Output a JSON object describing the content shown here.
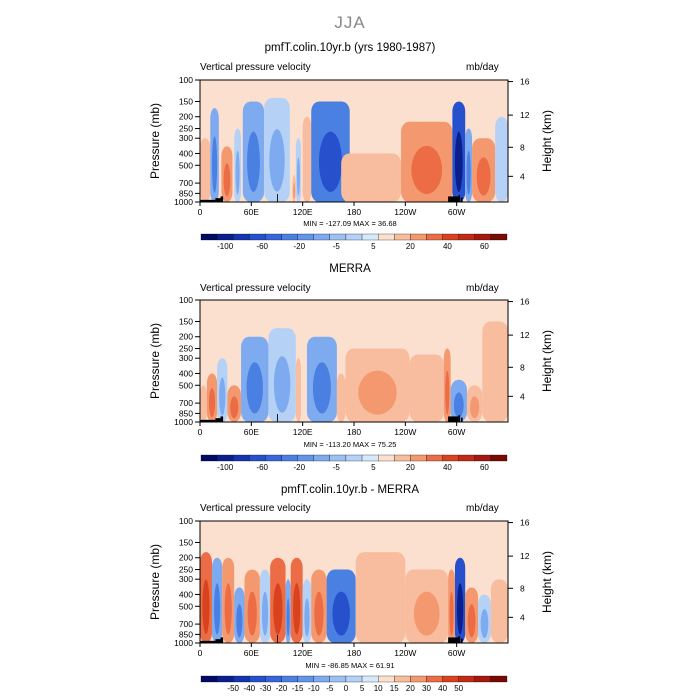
{
  "page_title": "JJA",
  "chart_data": [
    {
      "type": "heatmap",
      "title": "pmfT.colin.10yr.b (yrs 1980-1987)",
      "left_label": "Vertical pressure velocity",
      "right_label": "mb/day",
      "ylabel": "Pressure (mb)",
      "y2label": "Height (km)",
      "xticks": [
        "0",
        "60E",
        "120E",
        "180",
        "120W",
        "60W"
      ],
      "yticks": [
        "100",
        "150",
        "200",
        "250",
        "300",
        "400",
        "500",
        "700",
        "850",
        "1000"
      ],
      "y2ticks": [
        "16",
        "12",
        "8",
        "4"
      ],
      "min_max": "MIN = -127.09   MAX =  36.68",
      "colorbar_labels": [
        "-100",
        "-60",
        "-20",
        "-5",
        "5",
        "20",
        "40",
        "60"
      ],
      "grid": false,
      "features": [
        {
          "lon": 0,
          "lon2": 12,
          "p_top": 300,
          "sign": "+",
          "level": 1
        },
        {
          "lon": 12,
          "lon2": 22,
          "p_top": 170,
          "sign": "-",
          "level": 3
        },
        {
          "lon": 25,
          "lon2": 38,
          "p_top": 350,
          "sign": "+",
          "level": 3
        },
        {
          "lon": 40,
          "lon2": 48,
          "p_top": 250,
          "sign": "-",
          "level": 2
        },
        {
          "lon": 50,
          "lon2": 75,
          "p_top": 150,
          "sign": "-",
          "level": 3
        },
        {
          "lon": 75,
          "lon2": 105,
          "p_top": 140,
          "sign": "-",
          "level": 2
        },
        {
          "lon": 108,
          "lon2": 112,
          "p_top": 600,
          "sign": "+",
          "level": 2
        },
        {
          "lon": 112,
          "lon2": 118,
          "p_top": 300,
          "sign": "-",
          "level": 2
        },
        {
          "lon": 120,
          "lon2": 130,
          "p_top": 200,
          "sign": "+",
          "level": 1
        },
        {
          "lon": 130,
          "lon2": 175,
          "p_top": 150,
          "sign": "-",
          "level": 4
        },
        {
          "lon": 165,
          "lon2": 235,
          "p_top": 400,
          "sign": "+",
          "level": 1
        },
        {
          "lon": 235,
          "lon2": 295,
          "p_top": 220,
          "sign": "+",
          "level": 3
        },
        {
          "lon": 295,
          "lon2": 310,
          "p_top": 150,
          "sign": "-",
          "level": 5
        },
        {
          "lon": 310,
          "lon2": 318,
          "p_top": 250,
          "sign": "-",
          "level": 3
        },
        {
          "lon": 318,
          "lon2": 345,
          "p_top": 300,
          "sign": "+",
          "level": 3
        },
        {
          "lon": 345,
          "lon2": 360,
          "p_top": 200,
          "sign": "-",
          "level": 1
        }
      ]
    },
    {
      "type": "heatmap",
      "title": "MERRA",
      "left_label": "Vertical pressure velocity",
      "right_label": "mb/day",
      "ylabel": "Pressure (mb)",
      "y2label": "Height (km)",
      "xticks": [
        "0",
        "60E",
        "120E",
        "180",
        "120W",
        "60W"
      ],
      "yticks": [
        "100",
        "150",
        "200",
        "250",
        "300",
        "400",
        "500",
        "700",
        "850",
        "1000"
      ],
      "y2ticks": [
        "16",
        "12",
        "8",
        "4"
      ],
      "min_max": "MIN = -113.20   MAX =  75.25",
      "colorbar_labels": [
        "-100",
        "-60",
        "-20",
        "-5",
        "5",
        "20",
        "40",
        "60"
      ],
      "grid": false,
      "features": [
        {
          "lon": 0,
          "lon2": 8,
          "p_top": 500,
          "sign": "+",
          "level": 1
        },
        {
          "lon": 8,
          "lon2": 20,
          "p_top": 400,
          "sign": "+",
          "level": 3
        },
        {
          "lon": 20,
          "lon2": 32,
          "p_top": 300,
          "sign": "-",
          "level": 2
        },
        {
          "lon": 32,
          "lon2": 48,
          "p_top": 500,
          "sign": "+",
          "level": 3
        },
        {
          "lon": 48,
          "lon2": 80,
          "p_top": 200,
          "sign": "-",
          "level": 3
        },
        {
          "lon": 80,
          "lon2": 112,
          "p_top": 170,
          "sign": "-",
          "level": 2
        },
        {
          "lon": 112,
          "lon2": 118,
          "p_top": 300,
          "sign": "+",
          "level": 1
        },
        {
          "lon": 125,
          "lon2": 160,
          "p_top": 200,
          "sign": "-",
          "level": 3
        },
        {
          "lon": 160,
          "lon2": 170,
          "p_top": 400,
          "sign": "+",
          "level": 1
        },
        {
          "lon": 170,
          "lon2": 245,
          "p_top": 250,
          "sign": "+",
          "level": 2
        },
        {
          "lon": 245,
          "lon2": 285,
          "p_top": 280,
          "sign": "+",
          "level": 1
        },
        {
          "lon": 285,
          "lon2": 293,
          "p_top": 250,
          "sign": "+",
          "level": 3
        },
        {
          "lon": 293,
          "lon2": 312,
          "p_top": 450,
          "sign": "-",
          "level": 3
        },
        {
          "lon": 312,
          "lon2": 330,
          "p_top": 500,
          "sign": "+",
          "level": 2
        },
        {
          "lon": 330,
          "lon2": 360,
          "p_top": 150,
          "sign": "+",
          "level": 1
        }
      ]
    },
    {
      "type": "heatmap",
      "title": "pmfT.colin.10yr.b - MERRA",
      "left_label": "Vertical pressure velocity",
      "right_label": "mb/day",
      "ylabel": "Pressure (mb)",
      "y2label": "Height (km)",
      "xticks": [
        "0",
        "60E",
        "120E",
        "180",
        "120W",
        "60W"
      ],
      "yticks": [
        "100",
        "150",
        "200",
        "250",
        "300",
        "400",
        "500",
        "700",
        "850",
        "1000"
      ],
      "y2ticks": [
        "16",
        "12",
        "8",
        "4"
      ],
      "min_max": "MIN = -86.85   MAX =  61.91",
      "colorbar_labels": [
        "-50",
        "-40",
        "-30",
        "-20",
        "-15",
        "-10",
        "-5",
        "0",
        "5",
        "10",
        "15",
        "20",
        "30",
        "40",
        "50"
      ],
      "grid": false,
      "features": [
        {
          "lon": 0,
          "lon2": 14,
          "p_top": 180,
          "sign": "+",
          "level": 4
        },
        {
          "lon": 14,
          "lon2": 26,
          "p_top": 200,
          "sign": "-",
          "level": 3
        },
        {
          "lon": 26,
          "lon2": 40,
          "p_top": 200,
          "sign": "+",
          "level": 3
        },
        {
          "lon": 40,
          "lon2": 52,
          "p_top": 350,
          "sign": "-",
          "level": 3
        },
        {
          "lon": 52,
          "lon2": 70,
          "p_top": 250,
          "sign": "+",
          "level": 3
        },
        {
          "lon": 70,
          "lon2": 82,
          "p_top": 250,
          "sign": "-",
          "level": 2
        },
        {
          "lon": 82,
          "lon2": 100,
          "p_top": 200,
          "sign": "+",
          "level": 4
        },
        {
          "lon": 100,
          "lon2": 106,
          "p_top": 300,
          "sign": "-",
          "level": 3
        },
        {
          "lon": 106,
          "lon2": 120,
          "p_top": 200,
          "sign": "+",
          "level": 4
        },
        {
          "lon": 120,
          "lon2": 130,
          "p_top": 300,
          "sign": "-",
          "level": 2
        },
        {
          "lon": 130,
          "lon2": 148,
          "p_top": 250,
          "sign": "+",
          "level": 3
        },
        {
          "lon": 148,
          "lon2": 182,
          "p_top": 250,
          "sign": "-",
          "level": 4
        },
        {
          "lon": 182,
          "lon2": 240,
          "p_top": 180,
          "sign": "+",
          "level": 1
        },
        {
          "lon": 240,
          "lon2": 290,
          "p_top": 250,
          "sign": "+",
          "level": 2
        },
        {
          "lon": 290,
          "lon2": 298,
          "p_top": 250,
          "sign": "+",
          "level": 3
        },
        {
          "lon": 298,
          "lon2": 310,
          "p_top": 200,
          "sign": "-",
          "level": 5
        },
        {
          "lon": 310,
          "lon2": 325,
          "p_top": 350,
          "sign": "+",
          "level": 3
        },
        {
          "lon": 325,
          "lon2": 340,
          "p_top": 400,
          "sign": "-",
          "level": 2
        },
        {
          "lon": 340,
          "lon2": 360,
          "p_top": 300,
          "sign": "+",
          "level": 1
        }
      ]
    }
  ],
  "colors": {
    "background": "#ffffff",
    "page_title": "#888888",
    "neg": [
      "#d6e8fb",
      "#b5d2f6",
      "#7eaaf0",
      "#4b80e3",
      "#2650cc",
      "#0a1e8c"
    ],
    "pos": [
      "#fce0cf",
      "#f8bd9e",
      "#f4996f",
      "#ec6c45",
      "#d8421e",
      "#a51710"
    ],
    "colorbar_a": [
      "#030a66",
      "#0a1e8c",
      "#1535b0",
      "#2650cc",
      "#3965dc",
      "#4b80e3",
      "#6295ea",
      "#7eaaf0",
      "#9ac0f4",
      "#b5d2f6",
      "#d6e8fb",
      "#fce0cf",
      "#f8bd9e",
      "#f4996f",
      "#ec6c45",
      "#d8421e",
      "#c02b17",
      "#a51710",
      "#7a0a06"
    ],
    "colorbar_b": [
      "#030a66",
      "#0a1e8c",
      "#1535b0",
      "#2650cc",
      "#3965dc",
      "#4b80e3",
      "#6295ea",
      "#7eaaf0",
      "#9ac0f4",
      "#b5d2f6",
      "#d6e8fb",
      "#fce0cf",
      "#f8bd9e",
      "#f4996f",
      "#ec6c45",
      "#d8421e",
      "#c02b17",
      "#a51710",
      "#7a0a06"
    ]
  }
}
